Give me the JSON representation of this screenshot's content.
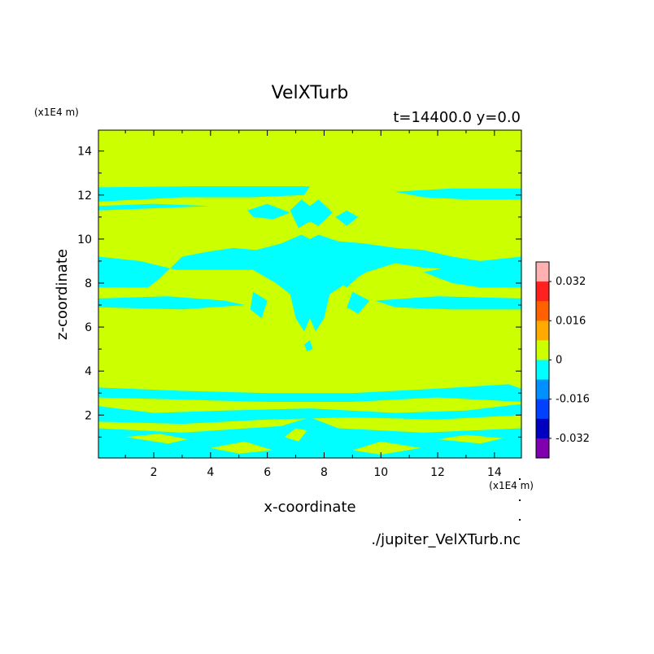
{
  "chart_data": {
    "type": "heatmap",
    "title": "VelXTurb",
    "subtitle": "t=14400.0 y=0.0",
    "xlabel": "x-coordinate",
    "ylabel": "z-coordinate",
    "x_unit": "(x1E4 m)",
    "y_unit": "(x1E4 m)",
    "source_file": "./jupiter_VelXTurb.nc",
    "xlim": [
      0.05,
      14.95
    ],
    "ylim": [
      0.05,
      14.95
    ],
    "x_ticks": [
      2,
      4,
      6,
      8,
      10,
      12,
      14
    ],
    "y_ticks": [
      2,
      4,
      6,
      8,
      10,
      12,
      14
    ],
    "background_level_color": "#ccff00",
    "negative_level_color": "#00ffff",
    "colorbar": {
      "levels": [
        {
          "color": "#ffb0b0"
        },
        {
          "color": "#ff2020"
        },
        {
          "color": "#ff6000"
        },
        {
          "color": "#ffaa00"
        },
        {
          "color": "#ccff00"
        },
        {
          "color": "#00ffff"
        },
        {
          "color": "#0090ff"
        },
        {
          "color": "#0040ff"
        },
        {
          "color": "#0000c0"
        },
        {
          "color": "#8000b0"
        }
      ],
      "tick_labels": [
        {
          "value": 0.032,
          "label": "0.032"
        },
        {
          "value": 0.016,
          "label": "0.016"
        },
        {
          "value": 0,
          "label": "0"
        },
        {
          "value": -0.016,
          "label": "-0.016"
        },
        {
          "value": -0.032,
          "label": "-0.032"
        }
      ],
      "range": [
        -0.04,
        0.04
      ]
    },
    "negative_regions": [
      [
        [
          0.05,
          12.35
        ],
        [
          3.5,
          12.4
        ],
        [
          7.5,
          12.4
        ],
        [
          7.3,
          12.0
        ],
        [
          5.5,
          11.9
        ],
        [
          3.0,
          11.9
        ],
        [
          0.05,
          11.7
        ]
      ],
      [
        [
          0.05,
          11.5
        ],
        [
          2.0,
          11.6
        ],
        [
          4.0,
          11.5
        ],
        [
          0.05,
          11.3
        ]
      ],
      [
        [
          10.5,
          12.15
        ],
        [
          12.5,
          12.3
        ],
        [
          14.95,
          12.3
        ],
        [
          14.95,
          11.8
        ],
        [
          13.0,
          11.8
        ],
        [
          11.5,
          11.9
        ]
      ],
      [
        [
          5.3,
          11.3
        ],
        [
          6.0,
          11.6
        ],
        [
          6.8,
          11.2
        ],
        [
          6.2,
          10.9
        ],
        [
          5.5,
          11.0
        ]
      ],
      [
        [
          6.8,
          11.3
        ],
        [
          7.2,
          11.8
        ],
        [
          7.5,
          11.5
        ],
        [
          7.8,
          11.8
        ],
        [
          8.3,
          11.2
        ],
        [
          7.8,
          10.6
        ],
        [
          7.5,
          10.8
        ],
        [
          7.1,
          10.5
        ]
      ],
      [
        [
          8.4,
          11.0
        ],
        [
          8.8,
          11.3
        ],
        [
          9.2,
          11.0
        ],
        [
          8.8,
          10.6
        ]
      ],
      [
        [
          0.05,
          9.2
        ],
        [
          1.5,
          9.0
        ],
        [
          2.8,
          8.6
        ],
        [
          4.5,
          8.6
        ],
        [
          4.0,
          9.0
        ],
        [
          3.0,
          9.2
        ],
        [
          2.2,
          8.2
        ],
        [
          1.8,
          7.8
        ],
        [
          0.05,
          7.8
        ]
      ],
      [
        [
          0.05,
          7.3
        ],
        [
          2.5,
          7.4
        ],
        [
          4.5,
          7.2
        ],
        [
          5.2,
          7.0
        ],
        [
          3.0,
          6.8
        ],
        [
          0.05,
          6.9
        ]
      ],
      [
        [
          3.0,
          9.2
        ],
        [
          3.8,
          9.4
        ],
        [
          4.8,
          9.6
        ],
        [
          5.6,
          9.5
        ],
        [
          6.5,
          9.8
        ],
        [
          7.2,
          10.2
        ],
        [
          7.5,
          10.0
        ],
        [
          7.8,
          10.2
        ],
        [
          8.5,
          9.9
        ],
        [
          9.4,
          9.8
        ],
        [
          10.5,
          9.6
        ],
        [
          11.5,
          9.5
        ],
        [
          12.5,
          9.2
        ],
        [
          13.5,
          9.0
        ],
        [
          12.8,
          8.6
        ],
        [
          11.5,
          8.7
        ],
        [
          10.5,
          8.9
        ],
        [
          9.5,
          8.5
        ],
        [
          8.8,
          8.0
        ],
        [
          8.2,
          7.5
        ],
        [
          8.0,
          6.4
        ],
        [
          7.7,
          5.8
        ],
        [
          7.5,
          6.4
        ],
        [
          7.3,
          5.8
        ],
        [
          7.0,
          6.4
        ],
        [
          6.8,
          7.5
        ],
        [
          6.3,
          8.0
        ],
        [
          5.5,
          8.6
        ],
        [
          4.5,
          8.6
        ]
      ],
      [
        [
          6.0,
          8.5
        ],
        [
          6.8,
          8.8
        ],
        [
          7.2,
          8.2
        ],
        [
          6.5,
          7.8
        ]
      ],
      [
        [
          8.2,
          8.3
        ],
        [
          8.8,
          8.8
        ],
        [
          9.4,
          8.5
        ],
        [
          8.8,
          7.8
        ]
      ],
      [
        [
          5.5,
          7.6
        ],
        [
          6.0,
          7.2
        ],
        [
          5.8,
          6.4
        ],
        [
          5.4,
          6.8
        ]
      ],
      [
        [
          9.0,
          7.6
        ],
        [
          9.6,
          7.2
        ],
        [
          9.2,
          6.6
        ],
        [
          8.8,
          6.9
        ]
      ],
      [
        [
          13.5,
          9.0
        ],
        [
          14.95,
          9.2
        ],
        [
          14.95,
          7.8
        ],
        [
          13.5,
          7.8
        ],
        [
          12.5,
          8.0
        ],
        [
          11.5,
          8.5
        ]
      ],
      [
        [
          9.8,
          7.2
        ],
        [
          12.0,
          7.4
        ],
        [
          14.95,
          7.3
        ],
        [
          14.95,
          6.8
        ],
        [
          12.5,
          6.8
        ],
        [
          10.5,
          6.9
        ]
      ],
      [
        [
          7.3,
          5.2
        ],
        [
          7.5,
          5.4
        ],
        [
          7.6,
          5.0
        ],
        [
          7.4,
          4.9
        ]
      ],
      [
        [
          0.05,
          3.25
        ],
        [
          3.0,
          3.1
        ],
        [
          6.0,
          3.0
        ],
        [
          9.0,
          3.0
        ],
        [
          12.0,
          3.2
        ],
        [
          14.5,
          3.4
        ],
        [
          14.95,
          3.2
        ],
        [
          14.95,
          2.6
        ],
        [
          12.0,
          2.8
        ],
        [
          9.0,
          2.6
        ],
        [
          6.0,
          2.6
        ],
        [
          3.0,
          2.7
        ],
        [
          0.05,
          2.8
        ]
      ],
      [
        [
          0.05,
          2.4
        ],
        [
          2.0,
          2.1
        ],
        [
          4.5,
          2.2
        ],
        [
          7.5,
          2.3
        ],
        [
          10.5,
          2.1
        ],
        [
          13.0,
          2.2
        ],
        [
          14.95,
          2.5
        ],
        [
          14.95,
          2.0
        ],
        [
          12.0,
          1.8
        ],
        [
          9.0,
          1.9
        ],
        [
          6.0,
          1.8
        ],
        [
          3.0,
          1.6
        ],
        [
          0.05,
          1.7
        ]
      ],
      [
        [
          0.05,
          1.4
        ],
        [
          3.0,
          1.2
        ],
        [
          6.5,
          1.5
        ],
        [
          7.5,
          1.9
        ],
        [
          8.5,
          1.4
        ],
        [
          11.5,
          1.2
        ],
        [
          14.95,
          1.4
        ],
        [
          14.95,
          0.05
        ],
        [
          0.05,
          0.05
        ]
      ],
      [
        [
          1.5,
          0.05
        ],
        [
          3.5,
          0.6
        ],
        [
          5.5,
          0.9
        ],
        [
          6.8,
          0.6
        ],
        [
          7.5,
          0.05
        ]
      ],
      [
        [
          7.5,
          0.05
        ],
        [
          9.0,
          0.7
        ],
        [
          11.0,
          0.9
        ],
        [
          13.0,
          0.5
        ],
        [
          14.0,
          0.05
        ]
      ]
    ],
    "positive_islands": [
      [
        [
          1.0,
          1.0
        ],
        [
          2.5,
          0.7
        ],
        [
          3.2,
          0.9
        ],
        [
          2.2,
          1.15
        ]
      ],
      [
        [
          4.0,
          0.5
        ],
        [
          5.2,
          0.8
        ],
        [
          6.2,
          0.4
        ],
        [
          5.0,
          0.25
        ]
      ],
      [
        [
          9.0,
          0.4
        ],
        [
          10.0,
          0.8
        ],
        [
          11.4,
          0.5
        ],
        [
          10.0,
          0.2
        ]
      ],
      [
        [
          12.0,
          0.9
        ],
        [
          13.5,
          0.7
        ],
        [
          14.3,
          0.95
        ],
        [
          13.0,
          1.1
        ]
      ],
      [
        [
          6.6,
          1.0
        ],
        [
          7.0,
          1.4
        ],
        [
          7.4,
          1.3
        ],
        [
          7.1,
          0.8
        ]
      ]
    ]
  }
}
